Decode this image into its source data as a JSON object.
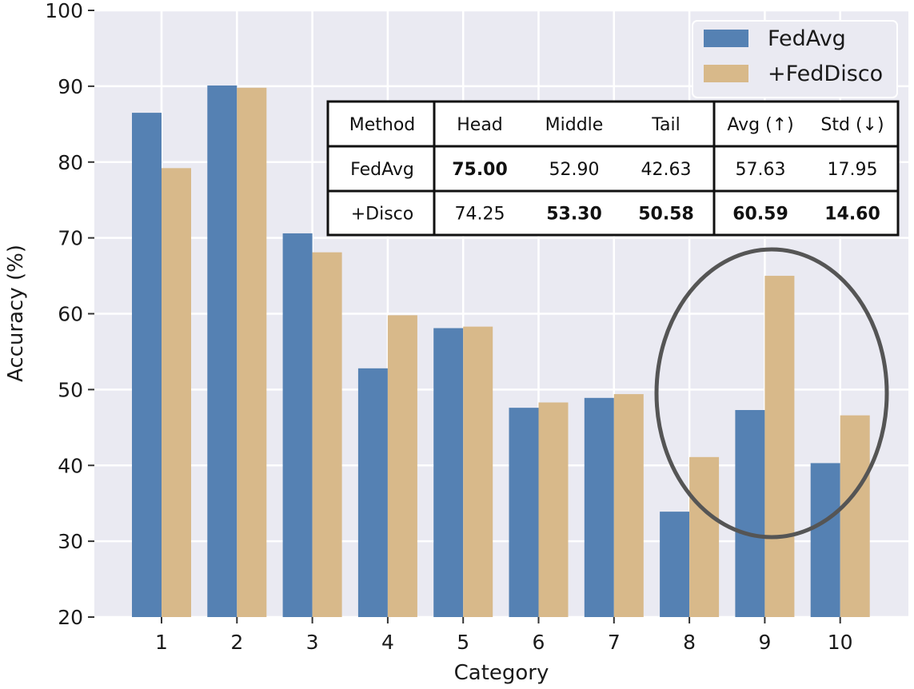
{
  "chart_data": {
    "type": "bar",
    "categories": [
      "1",
      "2",
      "3",
      "4",
      "5",
      "6",
      "7",
      "8",
      "9",
      "10"
    ],
    "series": [
      {
        "name": "FedAvg",
        "color": "#5581b3",
        "values": [
          86.5,
          90.1,
          70.6,
          52.8,
          58.1,
          47.6,
          48.9,
          33.9,
          47.3,
          40.3
        ]
      },
      {
        "name": "+FedDisco",
        "color": "#d8b98a",
        "values": [
          79.2,
          89.8,
          68.1,
          59.8,
          58.3,
          48.3,
          49.4,
          41.1,
          65.0,
          46.6
        ]
      }
    ],
    "xlabel": "Category",
    "ylabel": "Accuracy (%)",
    "ylim": [
      20,
      100
    ],
    "yticks": [
      "20",
      "30",
      "40",
      "50",
      "60",
      "70",
      "80",
      "90",
      "100"
    ],
    "grid": true,
    "legend_position": "top-right",
    "table": {
      "header": [
        "Method",
        "Head",
        "Middle",
        "Tail",
        "Avg (↑)",
        "Std (↓)"
      ],
      "rows": [
        {
          "cells": [
            "FedAvg",
            "75.00",
            "52.90",
            "42.63",
            "57.63",
            "17.95"
          ],
          "bold": [
            false,
            true,
            false,
            false,
            false,
            false
          ]
        },
        {
          "cells": [
            "+Disco",
            "74.25",
            "53.30",
            "50.58",
            "60.59",
            "14.60"
          ],
          "bold": [
            false,
            false,
            true,
            true,
            true,
            true
          ]
        }
      ]
    },
    "annotation": "ellipse highlighting category 9"
  }
}
